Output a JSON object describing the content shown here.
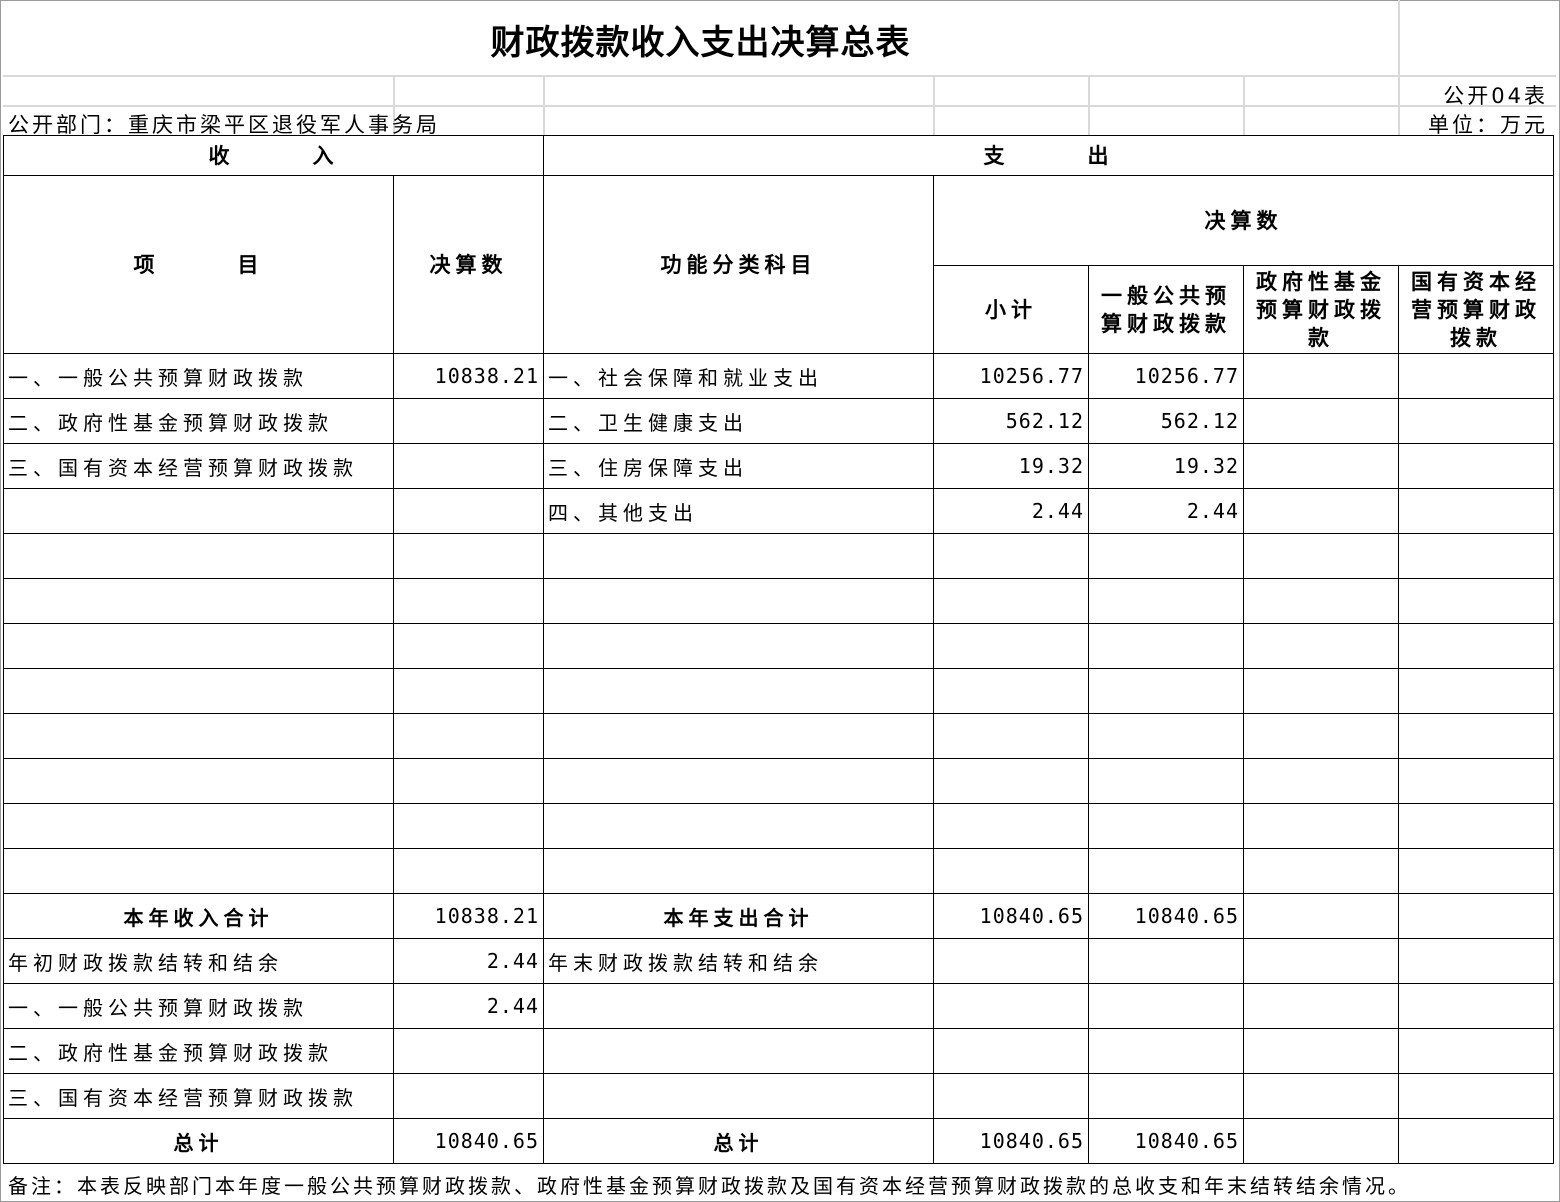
{
  "title": "财政拨款收入支出决算总表",
  "table_code": "公开04表",
  "department": "公开部门：重庆市梁平区退役军人事务局",
  "unit": "单位：万元",
  "headers": {
    "income": "收　　　入",
    "expense": "支　　　出",
    "item": "项　　　目",
    "final_amount": "决算数",
    "function_category": "功能分类科目",
    "final_amount_group": "决算数",
    "subtotal": "小计",
    "general_budget": "一般公共预算财政拨款",
    "gov_fund": "政府性基金预算财政拨款",
    "state_capital": "国有资本经营预算财政拨款"
  },
  "rows": [
    [
      "一、一般公共预算财政拨款",
      "10838.21",
      "一、社会保障和就业支出",
      "10256.77",
      "10256.77",
      "",
      ""
    ],
    [
      "二、政府性基金预算财政拨款",
      "",
      "二、卫生健康支出",
      "562.12",
      "562.12",
      "",
      ""
    ],
    [
      "三、国有资本经营预算财政拨款",
      "",
      "三、住房保障支出",
      "19.32",
      "19.32",
      "",
      ""
    ],
    [
      "",
      "",
      "四、其他支出",
      "2.44",
      "2.44",
      "",
      ""
    ],
    [
      "",
      "",
      "",
      "",
      "",
      "",
      ""
    ],
    [
      "",
      "",
      "",
      "",
      "",
      "",
      ""
    ],
    [
      "",
      "",
      "",
      "",
      "",
      "",
      ""
    ],
    [
      "",
      "",
      "",
      "",
      "",
      "",
      ""
    ],
    [
      "",
      "",
      "",
      "",
      "",
      "",
      ""
    ],
    [
      "",
      "",
      "",
      "",
      "",
      "",
      ""
    ],
    [
      "",
      "",
      "",
      "",
      "",
      "",
      ""
    ],
    [
      "",
      "",
      "",
      "",
      "",
      "",
      ""
    ]
  ],
  "year_total": [
    "本年收入合计",
    "10838.21",
    "本年支出合计",
    "10840.65",
    "10840.65",
    "",
    ""
  ],
  "tail_rows": [
    [
      "年初财政拨款结转和结余",
      "2.44",
      "年末财政拨款结转和结余",
      "",
      "",
      "",
      ""
    ],
    [
      "一、一般公共预算财政拨款",
      "2.44",
      "",
      "",
      "",
      "",
      ""
    ],
    [
      "二、政府性基金预算财政拨款",
      "",
      "",
      "",
      "",
      "",
      ""
    ],
    [
      "三、国有资本经营预算财政拨款",
      "",
      "",
      "",
      "",
      "",
      ""
    ]
  ],
  "grand_total": [
    "总计",
    "10840.65",
    "总计",
    "10840.65",
    "10840.65",
    "",
    ""
  ],
  "note": "备注：本表反映部门本年度一般公共预算财政拨款、政府性基金预算财政拨款及国有资本经营预算财政拨款的总收支和年末结转结余情况。"
}
